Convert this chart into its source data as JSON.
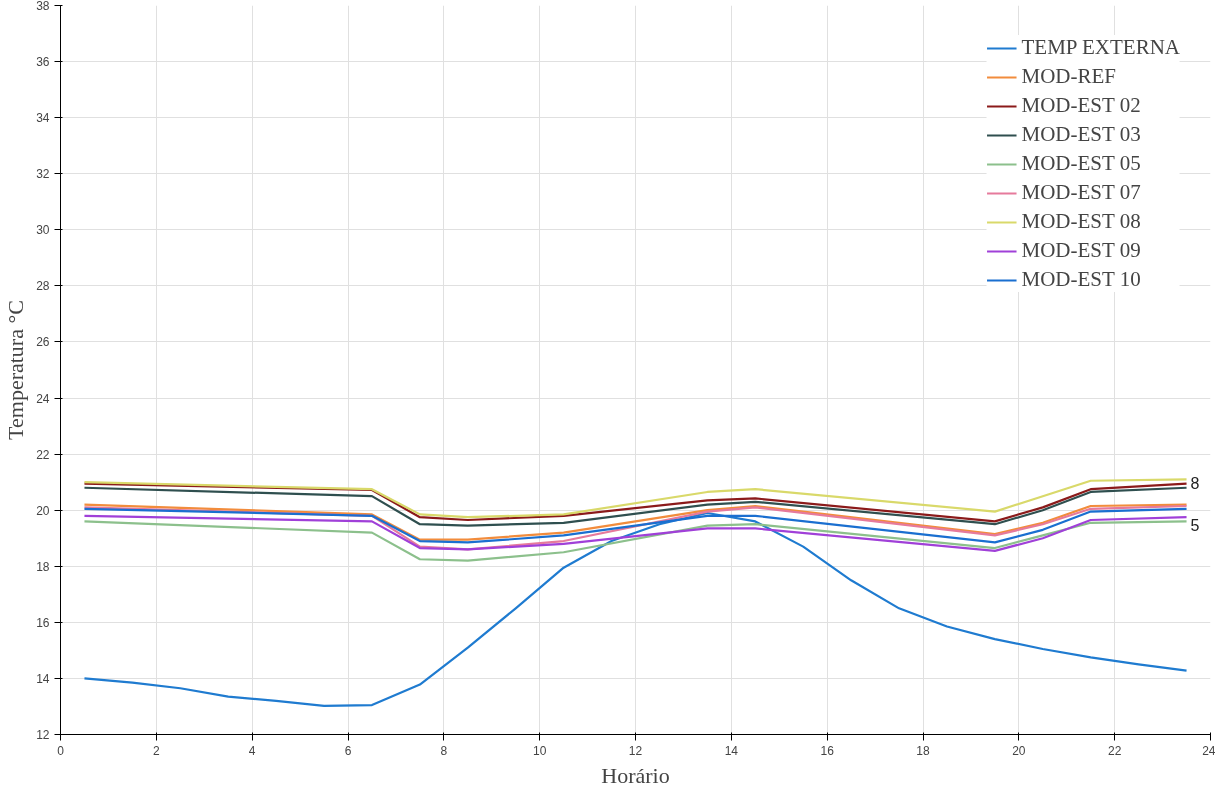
{
  "chart_data": {
    "type": "line",
    "xlabel": "Horário",
    "ylabel": "Temperatura °C",
    "xlim": [
      0,
      24
    ],
    "xticks": [
      0,
      2,
      4,
      6,
      8,
      10,
      12,
      14,
      16,
      18,
      20,
      22,
      24
    ],
    "ylim": [
      12,
      38
    ],
    "yticks": [
      12,
      14,
      16,
      18,
      20,
      22,
      24,
      26,
      28,
      30,
      32,
      34,
      36,
      38
    ],
    "grid": true,
    "legend": "top right",
    "marker": "none",
    "line_style": "solid",
    "x": [
      0.5,
      6.5,
      7.5,
      8.5,
      10.5,
      13.5,
      14.5,
      19.5,
      20.5,
      21.5,
      23.5
    ],
    "series": [
      {
        "name": "TEMP EXTERNA",
        "color": "#1f7bd0",
        "x": [
          0.5,
          1.5,
          2.5,
          3.5,
          4.5,
          5.5,
          6.5,
          7.5,
          8.5,
          9.5,
          10.5,
          11.5,
          12.5,
          13.5,
          14.5,
          15.5,
          16.5,
          17.5,
          18.5,
          19.5,
          20.5,
          21.5,
          22.5,
          23.5
        ],
        "values": [
          14.0,
          13.85,
          13.65,
          13.35,
          13.2,
          13.02,
          13.05,
          13.78,
          15.1,
          16.5,
          17.95,
          18.9,
          19.5,
          19.9,
          19.6,
          18.7,
          17.5,
          16.5,
          15.85,
          15.4,
          15.05,
          14.75,
          14.5,
          14.28
        ]
      },
      {
        "name": "MOD-REF",
        "color": "#f28c3c",
        "values": [
          20.2,
          19.85,
          18.95,
          18.95,
          19.2,
          20.0,
          20.15,
          19.15,
          19.55,
          20.15,
          20.2
        ]
      },
      {
        "name": "MOD-EST 02",
        "color": "#8b1a1a",
        "values": [
          20.95,
          20.72,
          19.75,
          19.65,
          19.8,
          20.35,
          20.42,
          19.6,
          20.1,
          20.75,
          20.95
        ]
      },
      {
        "name": "MOD-EST 03",
        "color": "#2f4f4f",
        "values": [
          20.8,
          20.5,
          19.5,
          19.45,
          19.55,
          20.2,
          20.3,
          19.5,
          20.0,
          20.65,
          20.8
        ]
      },
      {
        "name": "MOD-EST 05",
        "color": "#8cc08c",
        "values": [
          19.6,
          19.2,
          18.25,
          18.2,
          18.5,
          19.45,
          19.5,
          18.65,
          19.1,
          19.55,
          19.6
        ]
      },
      {
        "name": "MOD-EST 07",
        "color": "#e67a9c",
        "values": [
          20.1,
          19.8,
          18.7,
          18.6,
          18.9,
          19.95,
          20.1,
          19.1,
          19.5,
          20.05,
          20.15
        ]
      },
      {
        "name": "MOD-EST 08",
        "color": "#d9d96a",
        "values": [
          21.0,
          20.75,
          19.85,
          19.75,
          19.85,
          20.65,
          20.75,
          19.95,
          20.5,
          21.05,
          21.1
        ]
      },
      {
        "name": "MOD-EST 09",
        "color": "#a040d8",
        "values": [
          19.8,
          19.6,
          18.65,
          18.6,
          18.8,
          19.35,
          19.35,
          18.55,
          19.0,
          19.65,
          19.75
        ]
      },
      {
        "name": "MOD-EST 10",
        "color": "#1a6fd0",
        "values": [
          20.05,
          19.8,
          18.9,
          18.85,
          19.1,
          19.8,
          19.8,
          18.85,
          19.3,
          19.95,
          20.05
        ]
      }
    ],
    "annotations": [
      {
        "text": "8",
        "x": 23.5,
        "y": 21.1
      },
      {
        "text": "5",
        "x": 23.5,
        "y": 19.6
      }
    ]
  }
}
